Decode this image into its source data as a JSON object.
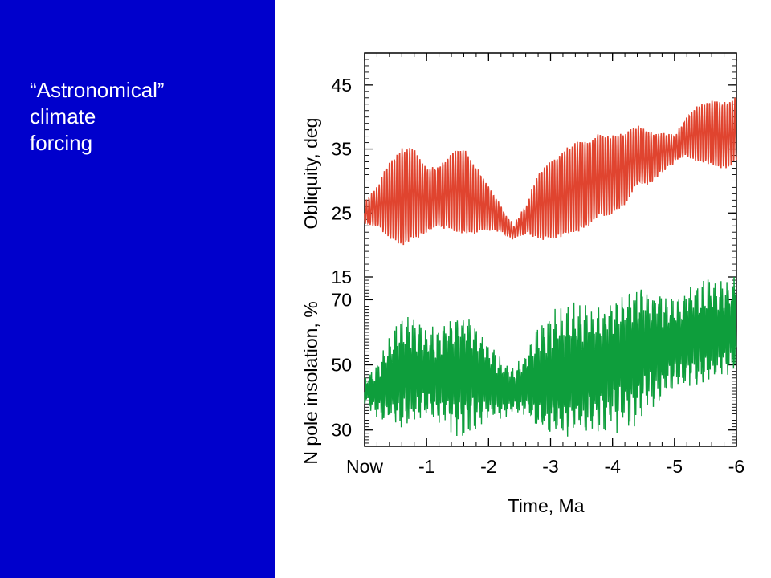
{
  "slide": {
    "title_lines": [
      "“Astronomical”",
      "climate",
      "forcing"
    ],
    "panel_color": "#0000CC"
  },
  "chart_data": {
    "type": "line",
    "x_axis": {
      "label": "Time, Ma",
      "ticks": [
        0,
        -1,
        -2,
        -3,
        -4,
        -5,
        -6
      ],
      "tick_labels": [
        "Now",
        "-1",
        "-2",
        "-3",
        "-4",
        "-5",
        "-6"
      ],
      "range": [
        0,
        -6
      ]
    },
    "panels": [
      {
        "name": "obliquity",
        "ylabel": "Obliquity, deg",
        "yticks": [
          15,
          25,
          35,
          45
        ],
        "ylim": [
          15,
          50
        ],
        "series": [
          {
            "color": "#E0442F",
            "x": [
              0,
              -0.2,
              -0.4,
              -0.6,
              -0.8,
              -1,
              -1.2,
              -1.4,
              -1.6,
              -1.8,
              -2,
              -2.2,
              -2.4,
              -2.6,
              -2.8,
              -3,
              -3.2,
              -3.4,
              -3.6,
              -3.8,
              -4,
              -4.2,
              -4.4,
              -4.6,
              -4.8,
              -5,
              -5.2,
              -5.4,
              -5.6,
              -5.8,
              -6
            ],
            "center": [
              25,
              26,
              27,
              27.5,
              28,
              27,
              27.5,
              28.5,
              28.5,
              27,
              26,
              24,
              22,
              24,
              26,
              27,
              28,
              29,
              29.5,
              31,
              31,
              32,
              34,
              33.5,
              34.5,
              35,
              37,
              37.5,
              37.5,
              37,
              38
            ],
            "amplitude": [
              1.5,
              3,
              6,
              7.5,
              7,
              5,
              4.5,
              6,
              6.5,
              5,
              3.5,
              2,
              1,
              2,
              5,
              6,
              6.5,
              7,
              6.5,
              6.5,
              6,
              5.5,
              4.5,
              4,
              3,
              2,
              3,
              4.5,
              5,
              5,
              5
            ]
          }
        ]
      },
      {
        "name": "insolation",
        "ylabel": "N pole insolation, %",
        "yticks": [
          30,
          50,
          70
        ],
        "ylim": [
          25,
          77
        ],
        "series": [
          {
            "color": "#0E9E3C",
            "x": [
              0,
              -0.2,
              -0.4,
              -0.6,
              -0.8,
              -1,
              -1.2,
              -1.4,
              -1.6,
              -1.8,
              -2,
              -2.2,
              -2.4,
              -2.6,
              -2.8,
              -3,
              -3.2,
              -3.4,
              -3.6,
              -3.8,
              -4,
              -4.2,
              -4.4,
              -4.6,
              -4.8,
              -5,
              -5.2,
              -5.4,
              -5.6,
              -5.8,
              -6
            ],
            "center": [
              42,
              42,
              45,
              47,
              48,
              47,
              47,
              48,
              48,
              47,
              45,
              43,
              42,
              44,
              45,
              46,
              47,
              48,
              48,
              49,
              51,
              52,
              54,
              55,
              56,
              56,
              58,
              59,
              60,
              61,
              62
            ],
            "amplitude": [
              3,
              6,
              10,
              13,
              12,
              10,
              11,
              13,
              14,
              12,
              9,
              7,
              5,
              7,
              12,
              14,
              15,
              15,
              14,
              14,
              15,
              15,
              16,
              13,
              12,
              10,
              11,
              12,
              12,
              11,
              11
            ]
          }
        ]
      }
    ]
  }
}
